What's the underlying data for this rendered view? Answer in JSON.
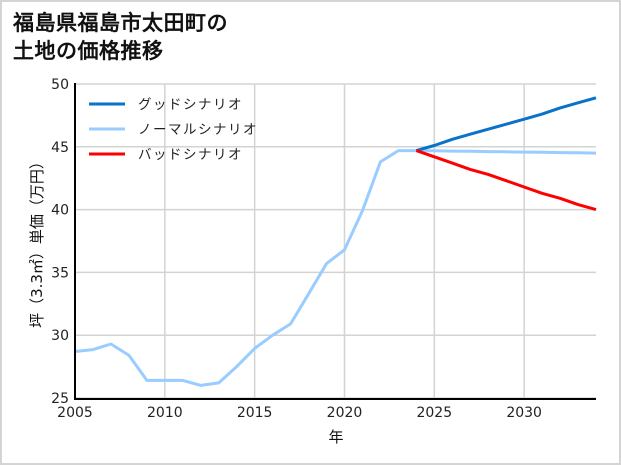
{
  "title": {
    "line1": "福島県福島市太田町の",
    "line2": "土地の価格推移"
  },
  "colors": {
    "good": "#0a72c8",
    "normal": "#99ccff",
    "bad": "#ff0000",
    "grid": "#d3d3d3",
    "axis": "#000000"
  },
  "chart_data": {
    "type": "line",
    "title": "福島県福島市太田町の土地の価格推移",
    "xlabel": "年",
    "ylabel": "坪（3.3㎡）単価（万円）",
    "xlim": [
      2005,
      2034
    ],
    "ylim": [
      25,
      50
    ],
    "xticks": [
      2005,
      2010,
      2015,
      2020,
      2025,
      2030
    ],
    "yticks": [
      25,
      30,
      35,
      40,
      45,
      50
    ],
    "grid": true,
    "legend_position": "upper left",
    "series": [
      {
        "name": "グッドシナリオ",
        "color": "#0a72c8",
        "x": [
          2024,
          2025,
          2026,
          2027,
          2028,
          2029,
          2030,
          2031,
          2032,
          2033,
          2034
        ],
        "y": [
          44.7,
          45.1,
          45.6,
          46.0,
          46.4,
          46.8,
          47.2,
          47.6,
          48.1,
          48.5,
          48.9
        ]
      },
      {
        "name": "ノーマルシナリオ",
        "color": "#99ccff",
        "x": [
          2005,
          2006,
          2007,
          2008,
          2009,
          2010,
          2011,
          2012,
          2013,
          2014,
          2015,
          2016,
          2017,
          2018,
          2019,
          2020,
          2021,
          2022,
          2023,
          2024,
          2025,
          2026,
          2027,
          2028,
          2029,
          2030,
          2031,
          2032,
          2033,
          2034
        ],
        "y": [
          28.7,
          28.85,
          29.3,
          28.4,
          26.4,
          26.4,
          26.4,
          26.0,
          26.2,
          27.5,
          28.95,
          30.0,
          30.9,
          33.3,
          35.7,
          36.8,
          39.9,
          43.8,
          44.7,
          44.7,
          44.68,
          44.66,
          44.64,
          44.62,
          44.6,
          44.58,
          44.56,
          44.54,
          44.52,
          44.5
        ]
      },
      {
        "name": "バッドシナリオ",
        "color": "#ff0000",
        "x": [
          2024,
          2025,
          2026,
          2027,
          2028,
          2029,
          2030,
          2031,
          2032,
          2033,
          2034
        ],
        "y": [
          44.7,
          44.2,
          43.7,
          43.2,
          42.8,
          42.3,
          41.8,
          41.3,
          40.9,
          40.4,
          40.0
        ]
      }
    ]
  }
}
